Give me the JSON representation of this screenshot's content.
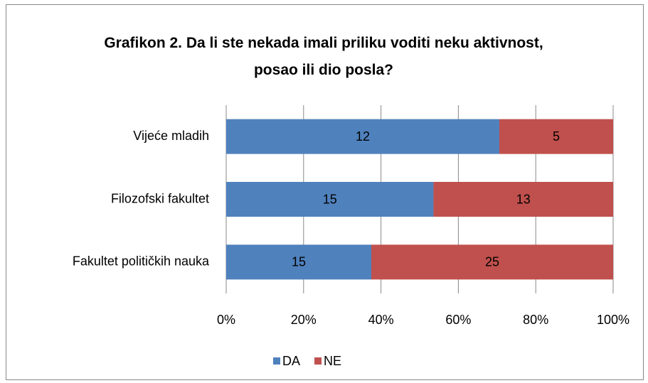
{
  "chart_data": {
    "type": "bar",
    "orientation": "horizontal",
    "stacking": "percent",
    "title": "Grafikon 2. Da li ste nekada imali priliku voditi neku aktivnost, posao ili dio posla?",
    "categories": [
      "Vijeće mladih",
      "Filozofski fakultet",
      "Fakultet političkih nauka"
    ],
    "series": [
      {
        "name": "DA",
        "color": "#4f81bd",
        "values": [
          12,
          15,
          15
        ]
      },
      {
        "name": "NE",
        "color": "#c0504d",
        "values": [
          5,
          13,
          25
        ]
      }
    ],
    "xlim": [
      0,
      100
    ],
    "xticks": [
      {
        "value": 0,
        "label": "0%"
      },
      {
        "value": 20,
        "label": "20%"
      },
      {
        "value": 40,
        "label": "40%"
      },
      {
        "value": 60,
        "label": "60%"
      },
      {
        "value": 80,
        "label": "80%"
      },
      {
        "value": 100,
        "label": "100%"
      }
    ],
    "grid": true,
    "legend": "bottom"
  }
}
